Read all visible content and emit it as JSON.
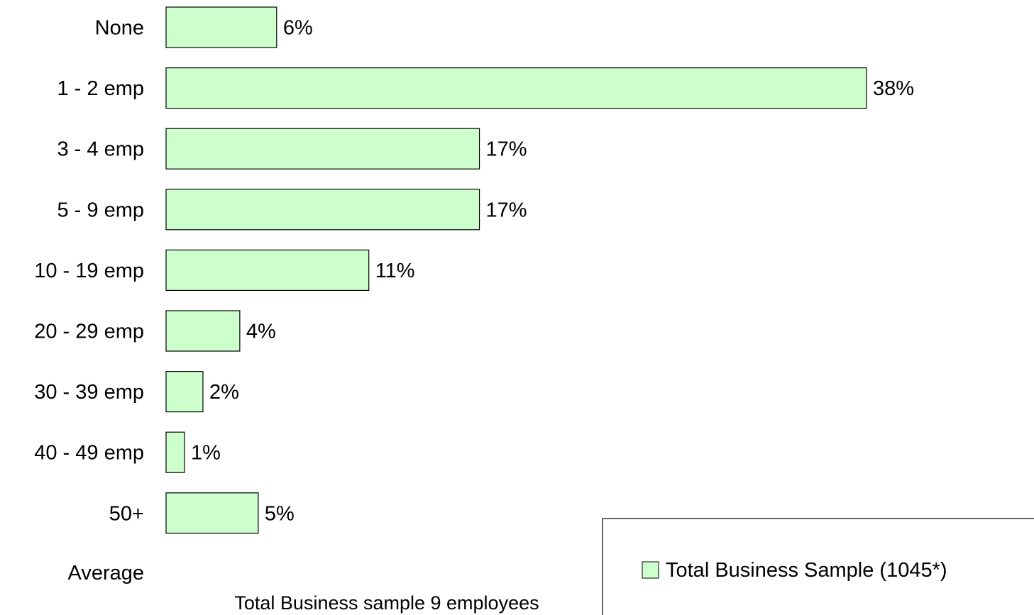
{
  "chart_data": {
    "type": "bar",
    "orientation": "horizontal",
    "categories": [
      "None",
      "1 - 2 emp",
      "3 - 4 emp",
      "5 - 9 emp",
      "10 - 19 emp",
      "20 - 29 emp",
      "30 - 39 emp",
      "40 - 49 emp",
      "50+"
    ],
    "series": [
      {
        "name": "Total Business Sample (1045*)",
        "values": [
          6,
          38,
          17,
          17,
          11,
          4,
          2,
          1,
          5
        ],
        "labels": [
          "6%",
          "38%",
          "17%",
          "17%",
          "11%",
          "4%",
          "2%",
          "1%",
          "5%"
        ]
      }
    ],
    "extra_category": "Average",
    "annotation": "Total Business sample 9 employees",
    "xlim": [
      0,
      38
    ],
    "grid": false,
    "legend_position": "bottom-right",
    "bar_color": "#ccffcc",
    "bar_border_color": "#000000"
  }
}
